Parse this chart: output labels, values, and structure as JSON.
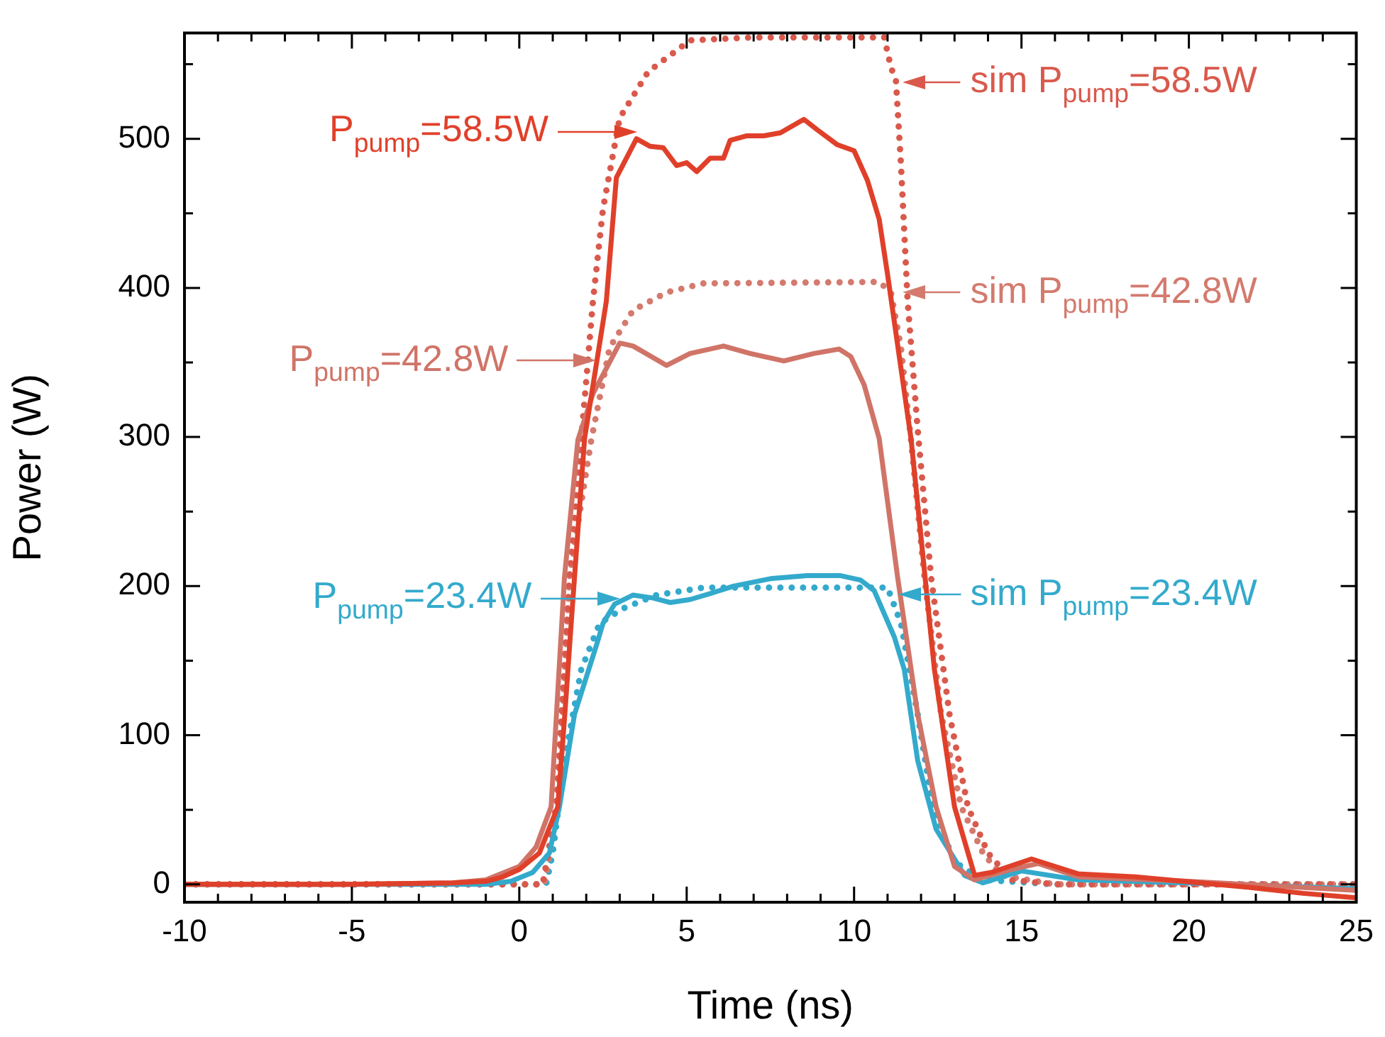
{
  "chart_data": {
    "type": "line",
    "xlabel": "Time (ns)",
    "ylabel": "Power (W)",
    "xlim": [
      -10,
      25
    ],
    "ylim": [
      -12,
      571
    ],
    "xticks": [
      -10,
      {
        "value": -9,
        "label": null
      },
      {
        "value": -8,
        "label": null
      },
      {
        "value": -7,
        "label": null
      },
      {
        "value": -6,
        "label": null
      },
      -5,
      {
        "value": -4,
        "label": null
      },
      {
        "value": -3,
        "label": null
      },
      {
        "value": -2,
        "label": null
      },
      {
        "value": -1,
        "label": null
      },
      0,
      {
        "value": 1,
        "label": null
      },
      {
        "value": 2,
        "label": null
      },
      {
        "value": 3,
        "label": null
      },
      {
        "value": 4,
        "label": null
      },
      5,
      {
        "value": 6,
        "label": null
      },
      {
        "value": 7,
        "label": null
      },
      {
        "value": 8,
        "label": null
      },
      {
        "value": 9,
        "label": null
      },
      10,
      {
        "value": 11,
        "label": null
      },
      {
        "value": 12,
        "label": null
      },
      {
        "value": 13,
        "label": null
      },
      {
        "value": 14,
        "label": null
      },
      15,
      {
        "value": 16,
        "label": null
      },
      {
        "value": 17,
        "label": null
      },
      {
        "value": 18,
        "label": null
      },
      {
        "value": 19,
        "label": null
      },
      20,
      {
        "value": 21,
        "label": null
      },
      {
        "value": 22,
        "label": null
      },
      {
        "value": 23,
        "label": null
      },
      {
        "value": 24,
        "label": null
      },
      25
    ],
    "yticks": [
      0,
      {
        "value": 50,
        "label": null
      },
      100,
      {
        "value": 150,
        "label": null
      },
      200,
      {
        "value": 250,
        "label": null
      },
      300,
      {
        "value": 350,
        "label": null
      },
      400,
      {
        "value": 450,
        "label": null
      },
      500,
      {
        "value": 550,
        "label": null
      }
    ],
    "legend": false,
    "marker": "none",
    "series": [
      {
        "color": "#e0402a",
        "line_style": "solid",
        "x": [
          -10,
          -5,
          -2,
          -1,
          -0.5,
          0,
          0.6,
          1.15,
          1.36,
          1.55,
          1.95,
          2.6,
          2.9,
          3.5,
          3.9,
          4.3,
          4.7,
          5.0,
          5.3,
          5.7,
          6.1,
          6.3,
          6.8,
          7.3,
          7.8,
          8.5,
          8.9,
          9.5,
          10.0,
          10.4,
          10.75,
          11.0,
          11.7,
          12.4,
          13.0,
          13.6,
          14.1,
          15.3,
          16.7,
          18.4,
          21.8,
          23.4,
          25
        ],
        "values": [
          0,
          0,
          1,
          2,
          5,
          10,
          21,
          52,
          114,
          175,
          299,
          391,
          474,
          500,
          495,
          494,
          482,
          484,
          478,
          487,
          487,
          499,
          502,
          502,
          504,
          513,
          506,
          496,
          492,
          472,
          446,
          409,
          299,
          144,
          52,
          6,
          8,
          17,
          7,
          5,
          -2,
          -6,
          -9
        ]
      },
      {
        "color": "#d07468",
        "line_style": "solid",
        "x": [
          -10,
          -5,
          -2,
          -1,
          0,
          0.5,
          0.95,
          1.35,
          1.75,
          2.2,
          3.0,
          3.4,
          4.4,
          5.1,
          6.1,
          6.9,
          7.9,
          8.8,
          9.55,
          9.9,
          10.3,
          10.75,
          11.3,
          11.9,
          12.45,
          13.0,
          13.6,
          14.7,
          15.5,
          16.7,
          20,
          25
        ],
        "values": [
          0,
          0,
          1,
          3,
          12,
          25,
          52,
          206,
          298,
          329,
          363,
          361,
          348,
          356,
          361,
          356,
          351,
          356,
          359,
          354,
          335,
          299,
          206,
          114,
          52,
          12,
          3,
          10,
          14,
          5,
          2,
          -4
        ]
      },
      {
        "color": "#33aacc",
        "line_style": "solid",
        "x": [
          -10,
          -5,
          -1,
          -0.25,
          0.4,
          0.9,
          1.2,
          1.65,
          2.3,
          2.5,
          2.85,
          3.4,
          4.0,
          4.5,
          5.1,
          5.7,
          6.4,
          7.5,
          8.6,
          9.6,
          10.2,
          10.6,
          11.2,
          11.5,
          11.9,
          12.45,
          13.3,
          13.85,
          15.0,
          16.7,
          20,
          25
        ],
        "values": [
          0,
          0,
          0,
          2,
          8,
          21,
          52,
          114,
          160,
          175,
          188,
          194,
          192,
          189,
          191,
          195,
          200,
          205,
          207,
          207,
          204,
          197,
          166,
          144,
          83,
          37,
          6,
          1,
          9,
          3,
          1,
          -3
        ]
      },
      {
        "color": "#d9594c",
        "line_style": "dotted",
        "x": [
          -10,
          0.7,
          1.1,
          1.5,
          1.85,
          2.2,
          2.5,
          3.0,
          3.85,
          5.1,
          7,
          10.9,
          11.1,
          11.25,
          11.4,
          11.6,
          11.9,
          12.3,
          12.85,
          13.4,
          14.0,
          14.7,
          16,
          25
        ],
        "values": [
          0,
          0,
          52,
          206,
          298,
          391,
          453,
          514,
          545,
          566,
          568,
          568,
          548,
          539,
          483,
          391,
          305,
          206,
          114,
          52,
          21,
          3,
          0,
          0
        ]
      },
      {
        "color": "#d47a6e",
        "line_style": "dotted",
        "x": [
          -10,
          0.75,
          1.15,
          1.5,
          2.15,
          2.7,
          3.4,
          4.4,
          5.5,
          10.75,
          11.1,
          11.4,
          11.7,
          12.1,
          12.6,
          13.2,
          13.85,
          14.4,
          16,
          25
        ],
        "values": [
          0,
          0,
          52,
          206,
          298,
          360,
          385,
          397,
          403,
          404,
          397,
          360,
          298,
          206,
          114,
          52,
          21,
          6,
          0,
          0
        ]
      },
      {
        "color": "#33aacc",
        "line_style": "dotted",
        "x": [
          -10,
          0.8,
          1.0,
          1.35,
          1.85,
          2.4,
          3.1,
          4.1,
          5.5,
          11.0,
          11.4,
          11.9,
          12.35,
          13.0,
          13.85,
          16,
          25
        ],
        "values": [
          0,
          0,
          21,
          83,
          144,
          175,
          185,
          194,
          199,
          199,
          175,
          114,
          52,
          15,
          3,
          0,
          0
        ]
      }
    ],
    "annotations": [
      {
        "text": "P$_{pump}$=58.5W",
        "x": 3.5,
        "y": 505
      },
      {
        "text": "P$_{pump}$=42.8W",
        "x": 2.3,
        "y": 351
      },
      {
        "text": "P$_{pump}$=23.4W",
        "x": 3.0,
        "y": 192
      },
      {
        "text": "sim P$_{pump}$=58.5W",
        "x": 11.45,
        "y": 538
      },
      {
        "text": "sim P$_{pump}$=42.8W",
        "x": 11.45,
        "y": 397
      },
      {
        "text": "sim P$_{pump}$=23.4W",
        "x": 11.3,
        "y": 194
      }
    ]
  }
}
